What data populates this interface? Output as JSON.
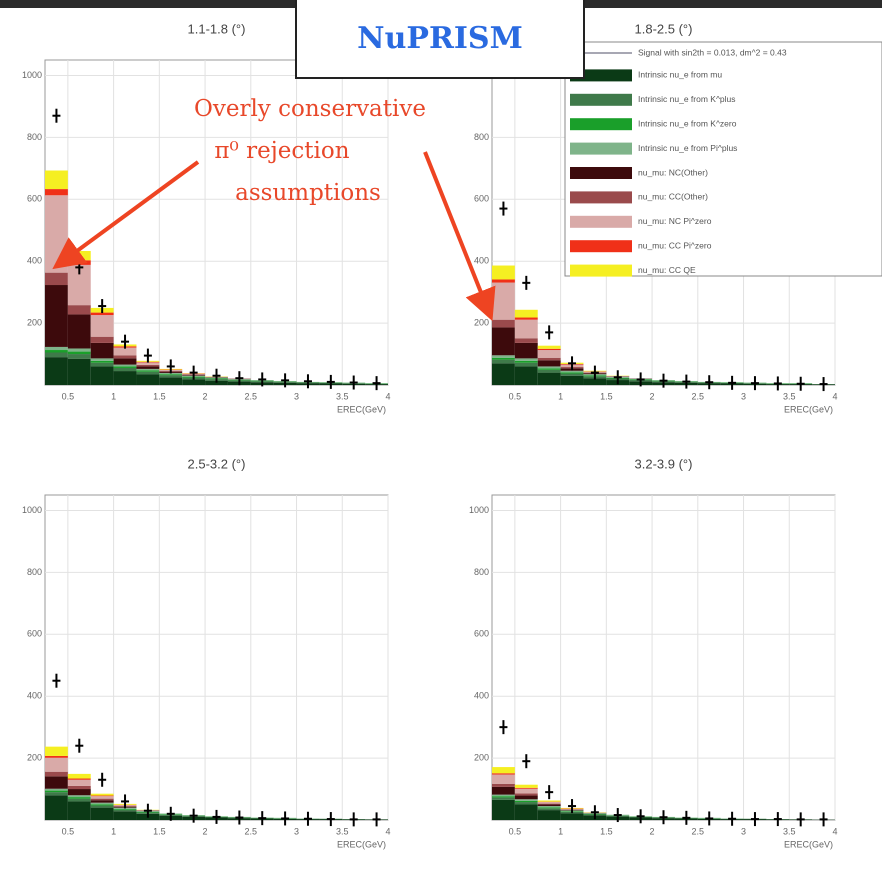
{
  "header": {
    "title": "NuPRISM"
  },
  "annotation": {
    "lines": [
      "Overly conservative",
      "π⁰ rejection",
      "assumptions"
    ]
  },
  "chart_data": {
    "type": "stacked-histogram",
    "xlabel": "EREC(GeV)",
    "bins": [
      0.25,
      0.5,
      0.75,
      1,
      1.25,
      1.5,
      1.75,
      2,
      2.25,
      2.5,
      2.75,
      3,
      3.25,
      3.5,
      3.75,
      4
    ],
    "xlim": [
      0.25,
      4
    ],
    "xticks": [
      0.5,
      1,
      1.5,
      2,
      2.5,
      3,
      3.5,
      4
    ],
    "ylim": [
      0,
      1050
    ],
    "yticks": [
      200,
      400,
      600,
      800,
      1000
    ],
    "grid": true,
    "signal": {
      "name": "Signal with sin2th = 0.013, dm^2 = 0.43",
      "color": "#8a8a9a"
    },
    "series": [
      {
        "name": "Intrinsic nu_e from mu",
        "color": "#0b3a16"
      },
      {
        "name": "Intrinsic nu_e from K^plus",
        "color": "#3f7a4a"
      },
      {
        "name": "Intrinsic nu_e from K^zero",
        "color": "#1a9f2a"
      },
      {
        "name": "Intrinsic nu_e from Pi^plus",
        "color": "#7fb48a"
      },
      {
        "name": "nu_mu: NC(Other)",
        "color": "#3d0a0c"
      },
      {
        "name": "nu_mu: CC(Other)",
        "color": "#9a4a4c"
      },
      {
        "name": "nu_mu: NC Pi^zero",
        "color": "#d9aaa8"
      },
      {
        "name": "nu_mu: CC Pi^zero",
        "color": "#f03018"
      },
      {
        "name": "nu_mu: CC QE",
        "color": "#f5ef22"
      }
    ],
    "panels": [
      {
        "title": "1.1-1.8 (°)",
        "values": [
          [
            90,
            85,
            60,
            45,
            35,
            25,
            18,
            14,
            11,
            9,
            7,
            6,
            5,
            4,
            3
          ],
          [
            15,
            15,
            12,
            10,
            8,
            7,
            6,
            5,
            4,
            3,
            3,
            2,
            2,
            2,
            1
          ],
          [
            8,
            8,
            6,
            5,
            4,
            3,
            3,
            2,
            2,
            2,
            1,
            1,
            1,
            1,
            1
          ],
          [
            10,
            10,
            8,
            6,
            5,
            4,
            3,
            3,
            2,
            2,
            2,
            1,
            1,
            1,
            1
          ],
          [
            200,
            110,
            50,
            20,
            8,
            4,
            2,
            1,
            1,
            0,
            0,
            0,
            0,
            0,
            0
          ],
          [
            40,
            30,
            20,
            10,
            5,
            3,
            2,
            1,
            1,
            0,
            0,
            0,
            0,
            0,
            0
          ],
          [
            250,
            130,
            70,
            25,
            8,
            3,
            2,
            1,
            0,
            0,
            0,
            0,
            0,
            0,
            0
          ],
          [
            20,
            15,
            8,
            4,
            2,
            1,
            1,
            0,
            0,
            0,
            0,
            0,
            0,
            0,
            0
          ],
          [
            60,
            30,
            15,
            6,
            3,
            2,
            1,
            1,
            0,
            0,
            0,
            0,
            0,
            0,
            0
          ]
        ],
        "data_points": [
          870,
          380,
          255,
          140,
          95,
          60,
          40,
          30,
          22,
          18,
          15,
          12,
          10,
          8,
          6
        ]
      },
      {
        "title": "1.8-2.5 (°)",
        "values": [
          [
            70,
            60,
            40,
            30,
            22,
            16,
            12,
            9,
            7,
            6,
            5,
            4,
            3,
            3,
            2
          ],
          [
            12,
            12,
            9,
            7,
            6,
            5,
            4,
            3,
            3,
            2,
            2,
            2,
            1,
            1,
            1
          ],
          [
            6,
            6,
            5,
            4,
            3,
            2,
            2,
            2,
            1,
            1,
            1,
            1,
            1,
            1,
            0
          ],
          [
            8,
            8,
            6,
            5,
            4,
            3,
            2,
            2,
            2,
            1,
            1,
            1,
            1,
            1,
            0
          ],
          [
            90,
            50,
            20,
            8,
            3,
            1,
            1,
            0,
            0,
            0,
            0,
            0,
            0,
            0,
            0
          ],
          [
            25,
            15,
            8,
            4,
            2,
            1,
            0,
            0,
            0,
            0,
            0,
            0,
            0,
            0,
            0
          ],
          [
            120,
            60,
            25,
            8,
            3,
            1,
            0,
            0,
            0,
            0,
            0,
            0,
            0,
            0,
            0
          ],
          [
            10,
            7,
            4,
            2,
            1,
            0,
            0,
            0,
            0,
            0,
            0,
            0,
            0,
            0,
            0
          ],
          [
            45,
            25,
            10,
            4,
            2,
            1,
            0,
            0,
            0,
            0,
            0,
            0,
            0,
            0,
            0
          ]
        ],
        "data_points": [
          570,
          330,
          170,
          70,
          40,
          25,
          18,
          14,
          11,
          9,
          7,
          6,
          5,
          4,
          3
        ]
      },
      {
        "title": "2.5-3.2 (°)",
        "values": [
          [
            80,
            60,
            40,
            28,
            20,
            14,
            10,
            8,
            6,
            5,
            4,
            3,
            3,
            2,
            2
          ],
          [
            10,
            9,
            7,
            5,
            4,
            3,
            3,
            2,
            2,
            1,
            1,
            1,
            1,
            1,
            0
          ],
          [
            5,
            5,
            4,
            3,
            2,
            2,
            1,
            1,
            1,
            1,
            1,
            0,
            0,
            0,
            0
          ],
          [
            6,
            6,
            5,
            4,
            3,
            2,
            2,
            1,
            1,
            1,
            1,
            1,
            0,
            0,
            0
          ],
          [
            40,
            20,
            8,
            3,
            1,
            0,
            0,
            0,
            0,
            0,
            0,
            0,
            0,
            0,
            0
          ],
          [
            15,
            10,
            5,
            2,
            1,
            0,
            0,
            0,
            0,
            0,
            0,
            0,
            0,
            0,
            0
          ],
          [
            45,
            20,
            8,
            3,
            1,
            0,
            0,
            0,
            0,
            0,
            0,
            0,
            0,
            0,
            0
          ],
          [
            6,
            4,
            2,
            1,
            0,
            0,
            0,
            0,
            0,
            0,
            0,
            0,
            0,
            0,
            0
          ],
          [
            30,
            15,
            6,
            3,
            1,
            0,
            0,
            0,
            0,
            0,
            0,
            0,
            0,
            0,
            0
          ]
        ],
        "data_points": [
          450,
          240,
          130,
          60,
          30,
          20,
          14,
          10,
          8,
          6,
          5,
          4,
          3,
          2,
          2
        ]
      },
      {
        "title": "3.2-3.9 (°)",
        "values": [
          [
            65,
            50,
            32,
            22,
            15,
            11,
            8,
            6,
            5,
            4,
            3,
            3,
            2,
            2,
            1
          ],
          [
            8,
            8,
            6,
            4,
            3,
            3,
            2,
            2,
            1,
            1,
            1,
            1,
            1,
            0,
            0
          ],
          [
            4,
            4,
            3,
            2,
            2,
            1,
            1,
            1,
            1,
            1,
            0,
            0,
            0,
            0,
            0
          ],
          [
            5,
            5,
            4,
            3,
            2,
            2,
            1,
            1,
            1,
            1,
            1,
            0,
            0,
            0,
            0
          ],
          [
            25,
            12,
            5,
            2,
            1,
            0,
            0,
            0,
            0,
            0,
            0,
            0,
            0,
            0,
            0
          ],
          [
            10,
            7,
            3,
            1,
            0,
            0,
            0,
            0,
            0,
            0,
            0,
            0,
            0,
            0,
            0
          ],
          [
            30,
            15,
            5,
            2,
            1,
            0,
            0,
            0,
            0,
            0,
            0,
            0,
            0,
            0,
            0
          ],
          [
            4,
            3,
            1,
            1,
            0,
            0,
            0,
            0,
            0,
            0,
            0,
            0,
            0,
            0,
            0
          ],
          [
            20,
            10,
            4,
            2,
            1,
            0,
            0,
            0,
            0,
            0,
            0,
            0,
            0,
            0,
            0
          ]
        ],
        "data_points": [
          300,
          190,
          90,
          45,
          25,
          16,
          12,
          9,
          7,
          5,
          4,
          3,
          3,
          2,
          2
        ]
      }
    ]
  }
}
